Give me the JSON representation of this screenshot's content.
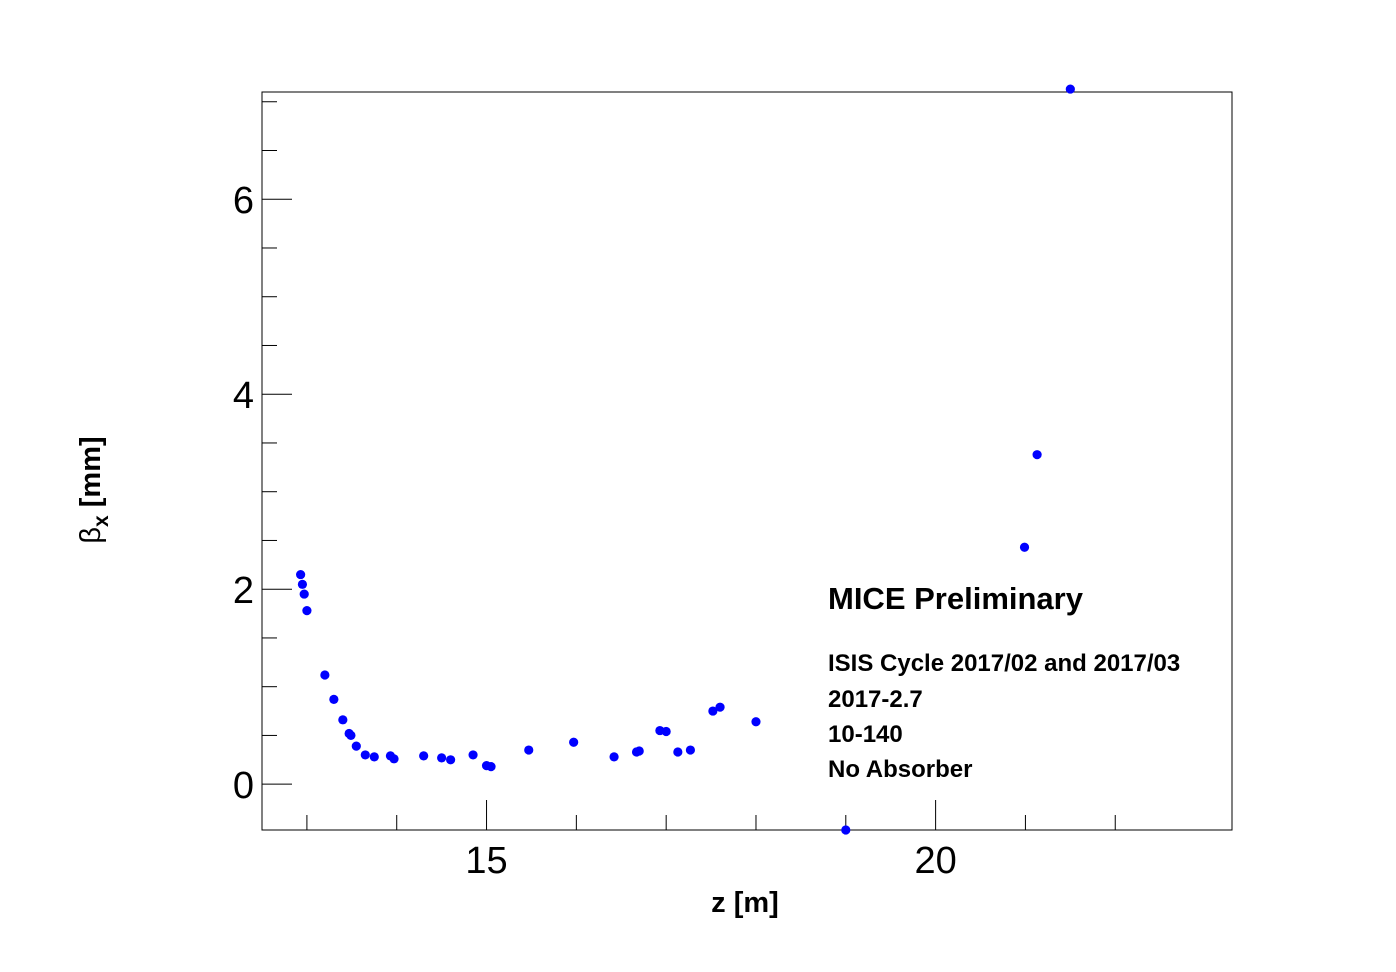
{
  "chart_data": {
    "type": "scatter",
    "title": "",
    "xlabel": "z [m]",
    "ylabel_main": "β",
    "ylabel_sub": "x",
    "ylabel_unit": "[mm]",
    "xlim": [
      12.5,
      23.3
    ],
    "ylim": [
      -0.47,
      7.1
    ],
    "xticks_major": [
      15,
      20
    ],
    "xticks_minor": [
      13,
      14,
      16,
      17,
      18,
      19,
      21,
      22
    ],
    "yticks_major": [
      0,
      2,
      4,
      6
    ],
    "yticks_minor": [
      -0.5,
      0.5,
      1,
      1.5,
      2.5,
      3,
      3.5,
      4.5,
      5,
      5.5,
      6.5,
      7
    ],
    "grid": false,
    "legend": "none",
    "marker_color": "#0000ff",
    "series": [
      {
        "x": [
          12.93,
          12.95,
          12.97,
          13.0,
          13.2,
          13.3,
          13.4,
          13.47,
          13.49,
          13.55,
          13.65,
          13.75,
          13.93,
          13.97,
          14.3,
          14.5,
          14.6,
          14.85,
          15.0,
          15.05,
          15.47,
          15.97,
          16.42,
          16.67,
          16.7,
          16.93,
          17.0,
          17.13,
          17.27,
          17.52,
          17.6,
          18.0,
          19.0,
          20.99,
          21.13,
          21.5
        ],
        "y": [
          2.15,
          2.05,
          1.95,
          1.78,
          1.12,
          0.87,
          0.66,
          0.52,
          0.5,
          0.39,
          0.3,
          0.28,
          0.29,
          0.26,
          0.29,
          0.27,
          0.25,
          0.3,
          0.19,
          0.18,
          0.35,
          0.43,
          0.28,
          0.33,
          0.34,
          0.55,
          0.54,
          0.33,
          0.35,
          0.75,
          0.79,
          0.64,
          -0.47,
          2.43,
          3.38,
          7.13
        ]
      }
    ]
  },
  "annotations": {
    "headline": "MICE Preliminary",
    "lines": [
      "ISIS Cycle 2017/02 and 2017/03",
      "2017-2.7",
      "10-140",
      "No Absorber"
    ]
  }
}
